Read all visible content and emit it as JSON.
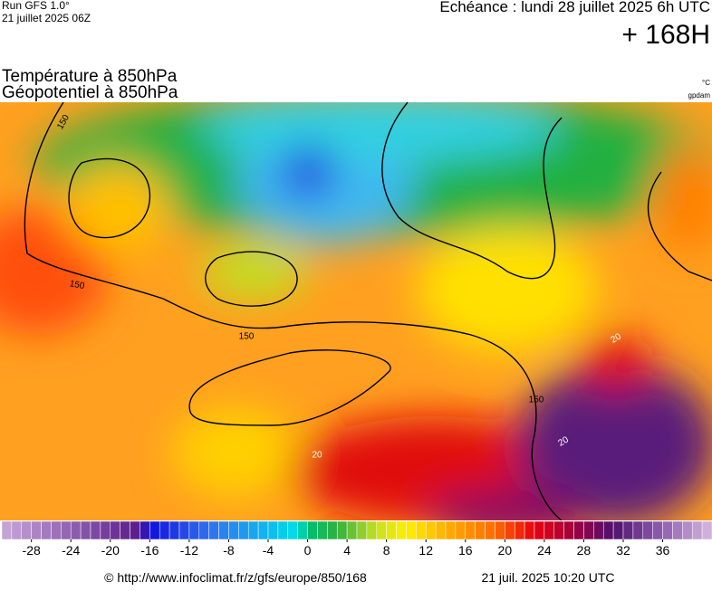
{
  "header": {
    "run": "Run GFS 1.0°",
    "run_date": "21 juillet 2025 06Z",
    "valid": "Echéance : lundi 28 juillet 2025 6h UTC",
    "lead": "+ 168H"
  },
  "titles": {
    "line1": "Température à 850hPa",
    "line2": "Géopotentiel à 850hPa",
    "unit1": "°C",
    "unit2": "gpdam"
  },
  "map": {
    "contour_labels": [
      "150",
      "150",
      "150",
      "150",
      "20",
      "20",
      "20"
    ]
  },
  "colorbar": {
    "range": [
      -31,
      41
    ],
    "ticks": [
      -28,
      -24,
      -20,
      -16,
      -12,
      -8,
      -4,
      0,
      4,
      8,
      12,
      16,
      20,
      24,
      28,
      32,
      36
    ],
    "stops": [
      {
        "value": -31,
        "color": "#c8a8d8"
      },
      {
        "value": -17,
        "color": "#5a1a8a"
      },
      {
        "value": -16,
        "color": "#1010e0"
      },
      {
        "value": -10,
        "color": "#3070f0"
      },
      {
        "value": -4,
        "color": "#10b8f0"
      },
      {
        "value": -1,
        "color": "#00e0e8"
      },
      {
        "value": 0,
        "color": "#00c070"
      },
      {
        "value": 3,
        "color": "#30b040"
      },
      {
        "value": 7,
        "color": "#c8e020"
      },
      {
        "value": 10,
        "color": "#fff000"
      },
      {
        "value": 14,
        "color": "#ffb000"
      },
      {
        "value": 19,
        "color": "#ff6a00"
      },
      {
        "value": 23,
        "color": "#e80010"
      },
      {
        "value": 27,
        "color": "#a00040"
      },
      {
        "value": 31,
        "color": "#501070"
      },
      {
        "value": 36,
        "color": "#9060b0"
      },
      {
        "value": 41,
        "color": "#d8b8e0"
      }
    ]
  },
  "footer": {
    "source": "© http://www.infoclimat.fr/z/gfs/europe/850/168",
    "created": "21 juil. 2025 10:20 UTC"
  }
}
